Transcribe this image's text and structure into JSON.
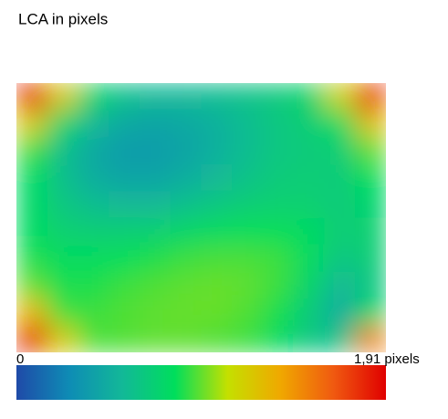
{
  "chart_data": {
    "type": "heatmap",
    "title": "LCA in pixels",
    "z": [
      [
        1.85,
        1.2,
        0.75,
        0.6,
        0.55,
        0.55,
        0.58,
        0.62,
        0.67,
        0.75,
        1.15,
        1.8
      ],
      [
        1.2,
        0.76,
        0.55,
        0.45,
        0.42,
        0.45,
        0.5,
        0.58,
        0.65,
        0.7,
        0.8,
        1.25
      ],
      [
        0.9,
        0.6,
        0.45,
        0.38,
        0.38,
        0.42,
        0.5,
        0.58,
        0.65,
        0.68,
        0.7,
        0.95
      ],
      [
        0.8,
        0.6,
        0.48,
        0.42,
        0.42,
        0.48,
        0.55,
        0.62,
        0.68,
        0.7,
        0.68,
        0.82
      ],
      [
        0.78,
        0.65,
        0.58,
        0.55,
        0.55,
        0.6,
        0.65,
        0.7,
        0.72,
        0.72,
        0.68,
        0.75
      ],
      [
        0.8,
        0.72,
        0.7,
        0.7,
        0.72,
        0.76,
        0.8,
        0.82,
        0.82,
        0.78,
        0.7,
        0.72
      ],
      [
        0.86,
        0.8,
        0.8,
        0.82,
        0.86,
        0.9,
        0.92,
        0.92,
        0.9,
        0.8,
        0.65,
        0.7
      ],
      [
        0.95,
        0.85,
        0.86,
        0.9,
        0.93,
        0.95,
        0.96,
        0.95,
        0.9,
        0.75,
        0.55,
        0.65
      ],
      [
        1.3,
        0.9,
        0.9,
        0.93,
        0.95,
        0.96,
        0.96,
        0.93,
        0.85,
        0.68,
        0.48,
        0.75
      ],
      [
        1.85,
        1.2,
        0.92,
        0.93,
        0.95,
        0.95,
        0.93,
        0.9,
        0.8,
        0.65,
        0.6,
        1.5
      ]
    ],
    "zlim": [
      0,
      1.91
    ],
    "zticks": [
      0,
      {
        "value": 1.91,
        "label": "1,91 pixels"
      }
    ],
    "colorscale": [
      "#1f4aa8",
      "#0e8cb5",
      "#12b898",
      "#00de5c",
      "#c4e000",
      "#f0a800",
      "#f05a10",
      "#e00000"
    ]
  }
}
